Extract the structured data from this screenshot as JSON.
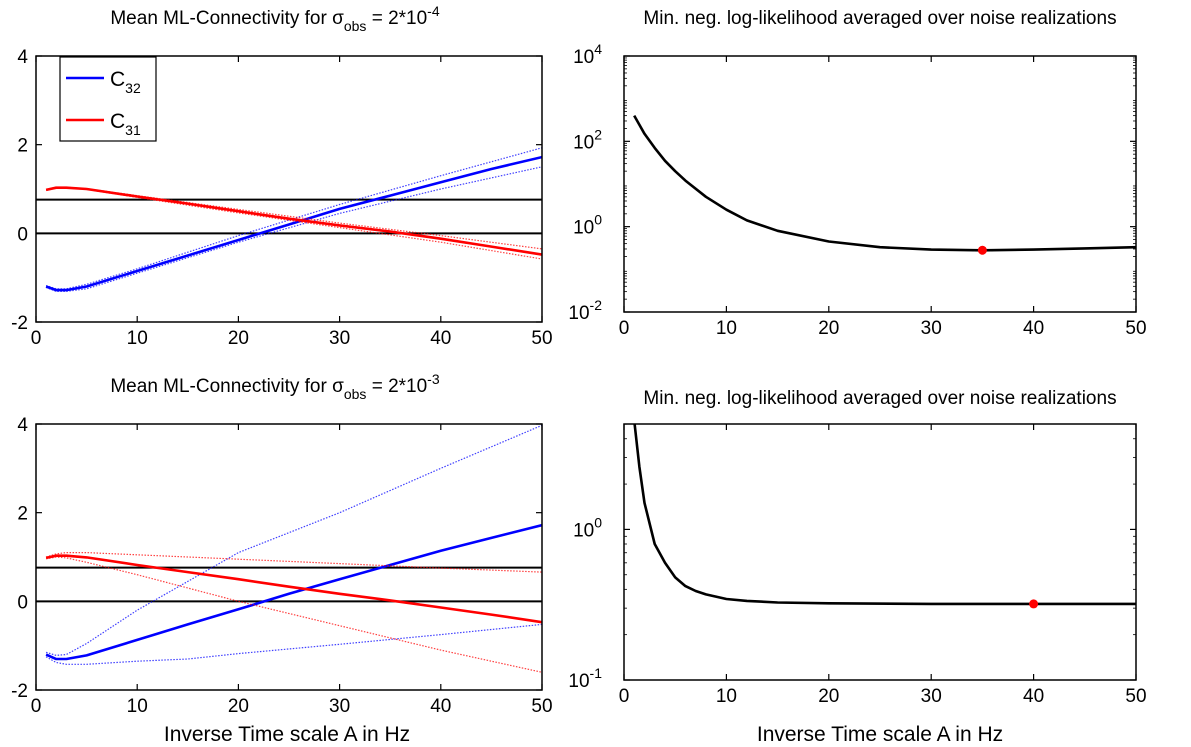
{
  "chart_data": [
    {
      "id": "p1",
      "type": "line",
      "title": "Mean ML-Connectivity for σ",
      "title_sub": "obs",
      "title_tail": " = 2*10",
      "title_sup": "-4",
      "xlabel": "",
      "xlim": [
        0,
        50
      ],
      "ylim": [
        -2,
        4
      ],
      "yscale": "linear",
      "xticks": [
        "0",
        "10",
        "20",
        "30",
        "40",
        "50"
      ],
      "yticks": [
        "-2",
        "0",
        "2",
        "4"
      ],
      "legend": {
        "placement": "top-left",
        "entries": [
          {
            "name": "C",
            "sub": "32",
            "color": "#0000ff"
          },
          {
            "name": "C",
            "sub": "31",
            "color": "#ff0000"
          }
        ]
      },
      "series": [
        {
          "name": "C32",
          "role": "mean",
          "color": "#0000ff",
          "x": [
            1,
            2,
            3,
            5,
            10,
            15,
            20,
            25,
            30,
            35,
            40,
            45,
            50
          ],
          "y": [
            -1.2,
            -1.28,
            -1.28,
            -1.2,
            -0.85,
            -0.5,
            -0.15,
            0.2,
            0.55,
            0.85,
            1.15,
            1.45,
            1.72
          ]
        },
        {
          "name": "C32 upper",
          "role": "bound",
          "color": "#0000ff",
          "x": [
            1,
            2,
            3,
            5,
            10,
            20,
            30,
            40,
            50
          ],
          "y": [
            -1.18,
            -1.25,
            -1.25,
            -1.15,
            -0.8,
            -0.05,
            0.65,
            1.3,
            1.93
          ]
        },
        {
          "name": "C32 lower",
          "role": "bound",
          "color": "#0000ff",
          "x": [
            1,
            2,
            3,
            5,
            10,
            20,
            30,
            40,
            50
          ],
          "y": [
            -1.22,
            -1.31,
            -1.31,
            -1.25,
            -0.9,
            -0.2,
            0.45,
            1.0,
            1.5
          ]
        },
        {
          "name": "C31",
          "role": "mean",
          "color": "#ff0000",
          "x": [
            1,
            2,
            3,
            5,
            10,
            15,
            20,
            25,
            30,
            35,
            40,
            45,
            50
          ],
          "y": [
            0.98,
            1.03,
            1.03,
            1.0,
            0.83,
            0.67,
            0.5,
            0.33,
            0.18,
            0.04,
            -0.12,
            -0.3,
            -0.48
          ]
        },
        {
          "name": "C31 upper",
          "role": "bound",
          "color": "#ff0000",
          "x": [
            1,
            2,
            3,
            5,
            10,
            20,
            30,
            40,
            50
          ],
          "y": [
            0.99,
            1.04,
            1.04,
            1.01,
            0.85,
            0.54,
            0.23,
            -0.05,
            -0.35
          ]
        },
        {
          "name": "C31 lower",
          "role": "bound",
          "color": "#ff0000",
          "x": [
            1,
            2,
            3,
            5,
            10,
            20,
            30,
            40,
            50
          ],
          "y": [
            0.97,
            1.02,
            1.02,
            0.99,
            0.81,
            0.46,
            0.13,
            -0.2,
            -0.58
          ]
        }
      ],
      "hlines": [
        0.76,
        0
      ]
    },
    {
      "id": "p2",
      "type": "line",
      "title": "Min. neg. log-likelihood averaged over noise realizations",
      "xlabel": "",
      "xlim": [
        0,
        50
      ],
      "yscale": "log",
      "ylim_log10": [
        -2,
        4
      ],
      "xticks": [
        "0",
        "10",
        "20",
        "30",
        "40",
        "50"
      ],
      "yticks": [
        {
          "base": "10",
          "exp": "-2"
        },
        {
          "base": "10",
          "exp": "0"
        },
        {
          "base": "10",
          "exp": "2"
        },
        {
          "base": "10",
          "exp": "4"
        }
      ],
      "series": [
        {
          "name": "likelihood",
          "color": "#000000",
          "x": [
            1,
            2,
            3,
            4,
            5,
            6,
            8,
            10,
            12,
            15,
            20,
            25,
            30,
            35,
            40,
            45,
            50
          ],
          "y": [
            400,
            150,
            70,
            35,
            20,
            12,
            5,
            2.5,
            1.4,
            0.8,
            0.45,
            0.33,
            0.29,
            0.28,
            0.29,
            0.31,
            0.33
          ]
        }
      ],
      "marker": {
        "x": 35,
        "y": 0.28,
        "color": "#ff0000"
      }
    },
    {
      "id": "p3",
      "type": "line",
      "title": "Mean ML-Connectivity for σ",
      "title_sub": "obs",
      "title_tail": " = 2*10",
      "title_sup": "-3",
      "xlabel": "Inverse Time scale A in Hz",
      "xlim": [
        0,
        50
      ],
      "ylim": [
        -2,
        4
      ],
      "yscale": "linear",
      "xticks": [
        "0",
        "10",
        "20",
        "30",
        "40",
        "50"
      ],
      "yticks": [
        "-2",
        "0",
        "2",
        "4"
      ],
      "series": [
        {
          "name": "C32",
          "role": "mean",
          "color": "#0000ff",
          "x": [
            1,
            2,
            3,
            5,
            10,
            15,
            20,
            25,
            30,
            35,
            40,
            45,
            50
          ],
          "y": [
            -1.2,
            -1.3,
            -1.3,
            -1.22,
            -0.87,
            -0.52,
            -0.18,
            0.17,
            0.5,
            0.82,
            1.14,
            1.43,
            1.72
          ]
        },
        {
          "name": "C32 upper",
          "role": "bound",
          "color": "#0000ff",
          "x": [
            1,
            2,
            3,
            5,
            10,
            15,
            20,
            30,
            40,
            50
          ],
          "y": [
            -1.15,
            -1.22,
            -1.2,
            -0.95,
            -0.2,
            0.45,
            1.1,
            2.0,
            3.0,
            3.97
          ]
        },
        {
          "name": "C32 lower",
          "role": "bound",
          "color": "#0000ff",
          "x": [
            1,
            2,
            3,
            5,
            10,
            15,
            20,
            30,
            40,
            50
          ],
          "y": [
            -1.25,
            -1.38,
            -1.42,
            -1.42,
            -1.35,
            -1.3,
            -1.18,
            -0.97,
            -0.75,
            -0.52
          ]
        },
        {
          "name": "C31",
          "role": "mean",
          "color": "#ff0000",
          "x": [
            1,
            2,
            3,
            5,
            10,
            15,
            20,
            25,
            30,
            35,
            40,
            45,
            50
          ],
          "y": [
            0.98,
            1.03,
            1.03,
            0.99,
            0.82,
            0.66,
            0.5,
            0.33,
            0.17,
            0.02,
            -0.14,
            -0.3,
            -0.47
          ]
        },
        {
          "name": "C31 upper",
          "role": "bound",
          "color": "#ff0000",
          "x": [
            1,
            2,
            3,
            5,
            10,
            20,
            30,
            40,
            50
          ],
          "y": [
            1.0,
            1.07,
            1.1,
            1.1,
            1.05,
            0.95,
            0.85,
            0.75,
            0.66
          ]
        },
        {
          "name": "C31 lower",
          "role": "bound",
          "color": "#ff0000",
          "x": [
            1,
            2,
            3,
            5,
            10,
            20,
            30,
            40,
            50
          ],
          "y": [
            0.96,
            1.0,
            0.98,
            0.88,
            0.6,
            0.0,
            -0.55,
            -1.1,
            -1.6
          ]
        }
      ],
      "hlines": [
        0.76,
        0
      ]
    },
    {
      "id": "p4",
      "type": "line",
      "title": "Min. neg. log-likelihood averaged over noise realizations",
      "xlabel": "Inverse Time scale A in Hz",
      "xlim": [
        0,
        50
      ],
      "yscale": "log",
      "ylim_log10": [
        -1,
        0.7
      ],
      "xticks": [
        "0",
        "10",
        "20",
        "30",
        "40",
        "50"
      ],
      "yticks": [
        {
          "base": "10",
          "exp": "-1"
        },
        {
          "base": "10",
          "exp": "0"
        }
      ],
      "series": [
        {
          "name": "likelihood",
          "color": "#000000",
          "x": [
            1,
            1.5,
            2,
            3,
            4,
            5,
            6,
            7,
            8,
            10,
            12,
            15,
            20,
            30,
            40,
            50
          ],
          "y": [
            5.3,
            2.6,
            1.5,
            0.8,
            0.6,
            0.48,
            0.42,
            0.39,
            0.37,
            0.345,
            0.335,
            0.327,
            0.323,
            0.32,
            0.32,
            0.32
          ]
        }
      ],
      "marker": {
        "x": 40,
        "y": 0.32,
        "color": "#ff0000"
      }
    }
  ]
}
